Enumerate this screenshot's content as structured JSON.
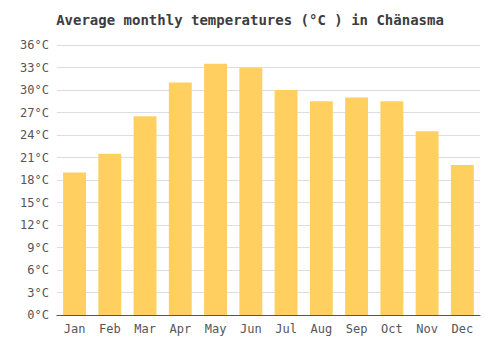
{
  "chart_data": {
    "type": "bar",
    "title": "Average monthly temperatures (°C ) in Chänasma",
    "categories": [
      "Jan",
      "Feb",
      "Mar",
      "Apr",
      "May",
      "Jun",
      "Jul",
      "Aug",
      "Sep",
      "Oct",
      "Nov",
      "Dec"
    ],
    "values": [
      19,
      21.5,
      26.5,
      31,
      33.5,
      33,
      30,
      28.5,
      29,
      28.5,
      24.5,
      20
    ],
    "color": "#FFD060",
    "ylim": [
      0,
      36
    ],
    "yticks": [
      {
        "value": 0,
        "label": "0°C"
      },
      {
        "value": 3,
        "label": "3°C"
      },
      {
        "value": 6,
        "label": "6°C"
      },
      {
        "value": 9,
        "label": "9°C"
      },
      {
        "value": 12,
        "label": "12°C"
      },
      {
        "value": 15,
        "label": "15°C"
      },
      {
        "value": 18,
        "label": "18°C"
      },
      {
        "value": 21,
        "label": "21°C"
      },
      {
        "value": 24,
        "label": "24°C"
      },
      {
        "value": 27,
        "label": "27°C"
      },
      {
        "value": 30,
        "label": "30°C"
      },
      {
        "value": 33,
        "label": "33°C"
      },
      {
        "value": 36,
        "label": "36°C"
      }
    ],
    "grid": true
  }
}
